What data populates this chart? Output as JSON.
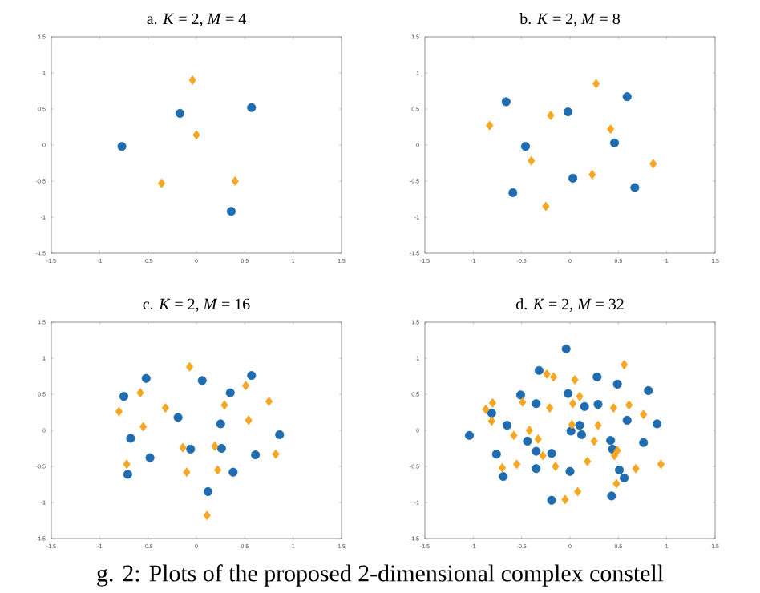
{
  "chart_data": [
    {
      "type": "scatter",
      "title": "a. *K* = 2, *M* = 4",
      "xlim": [
        -1.5,
        1.5
      ],
      "ylim": [
        -1.5,
        1.5
      ],
      "xticks": [
        -1.5,
        -1,
        -0.5,
        0,
        0.5,
        1,
        1.5
      ],
      "yticks": [
        -1.5,
        -1,
        -0.5,
        0,
        0.5,
        1,
        1.5
      ],
      "series": [
        {
          "color": "#1f6db0",
          "marker": "circle",
          "x": [
            -0.77,
            -0.17,
            0.57,
            0.36
          ],
          "values": [
            -0.02,
            0.44,
            0.52,
            -0.92
          ]
        },
        {
          "color": "#f5a623",
          "marker": "diamond",
          "x": [
            -0.04,
            0.0,
            -0.36,
            0.4
          ],
          "values": [
            0.9,
            0.14,
            -0.53,
            -0.5
          ]
        }
      ]
    },
    {
      "type": "scatter",
      "title": "b. *K* = 2, *M* = 8",
      "xlim": [
        -1.5,
        1.5
      ],
      "ylim": [
        -1.5,
        1.5
      ],
      "xticks": [
        -1.5,
        -1,
        -0.5,
        0,
        0.5,
        1,
        1.5
      ],
      "yticks": [
        -1.5,
        -1,
        -0.5,
        0,
        0.5,
        1,
        1.5
      ],
      "series": [
        {
          "color": "#1f6db0",
          "marker": "circle",
          "x": [
            -0.66,
            -0.02,
            0.59,
            -0.46,
            0.46,
            0.03,
            -0.59,
            0.67
          ],
          "values": [
            0.6,
            0.46,
            0.67,
            -0.02,
            0.03,
            -0.46,
            -0.66,
            -0.59
          ]
        },
        {
          "color": "#f5a623",
          "marker": "diamond",
          "x": [
            0.27,
            -0.2,
            -0.83,
            0.42,
            -0.4,
            0.23,
            0.86,
            -0.25
          ],
          "values": [
            0.85,
            0.41,
            0.27,
            0.22,
            -0.22,
            -0.41,
            -0.26,
            -0.85
          ]
        }
      ]
    },
    {
      "type": "scatter",
      "title": "c. *K* = 2, *M* = 16",
      "xlim": [
        -1.5,
        1.5
      ],
      "ylim": [
        -1.5,
        1.5
      ],
      "xticks": [
        -1.5,
        -1,
        -0.5,
        0,
        0.5,
        1,
        1.5
      ],
      "yticks": [
        -1.5,
        -1,
        -0.5,
        0,
        0.5,
        1,
        1.5
      ],
      "annotations": [
        "g. 2: Plots of the proposed 2-dimensional complex constell"
      ],
      "series": [
        {
          "color": "#1f6db0",
          "marker": "circle",
          "x": [
            -0.52,
            -0.75,
            0.06,
            0.57,
            0.35,
            -0.19,
            0.25,
            -0.68,
            0.86,
            -0.06,
            0.26,
            -0.48,
            0.61,
            -0.71,
            0.38,
            0.12
          ],
          "values": [
            0.72,
            0.47,
            0.69,
            0.76,
            0.52,
            0.18,
            0.09,
            -0.11,
            -0.06,
            -0.26,
            -0.25,
            -0.38,
            -0.34,
            -0.61,
            -0.58,
            -0.85
          ]
        },
        {
          "color": "#f5a623",
          "marker": "diamond",
          "x": [
            -0.07,
            0.51,
            -0.58,
            -0.8,
            -0.32,
            0.29,
            0.75,
            0.54,
            -0.55,
            -0.14,
            0.19,
            -0.72,
            -0.1,
            0.22,
            0.82,
            0.11
          ],
          "values": [
            0.88,
            0.62,
            0.52,
            0.26,
            0.31,
            0.35,
            0.4,
            0.14,
            0.05,
            -0.24,
            -0.22,
            -0.47,
            -0.58,
            -0.55,
            -0.33,
            -1.18
          ]
        }
      ]
    },
    {
      "type": "scatter",
      "title": "d. *K* = 2, *M* = 32",
      "xlim": [
        -1.5,
        1.5
      ],
      "ylim": [
        -1.5,
        1.5
      ],
      "xticks": [
        -1.5,
        -1,
        -0.5,
        0,
        0.5,
        1,
        1.5
      ],
      "yticks": [
        -1.5,
        -1,
        -0.5,
        0,
        0.5,
        1,
        1.5
      ],
      "series": [
        {
          "color": "#1f6db0",
          "marker": "circle",
          "x": [
            -0.04,
            -0.32,
            0.28,
            0.49,
            0.81,
            -0.51,
            -0.02,
            -0.35,
            0.15,
            0.29,
            -0.81,
            -0.65,
            0.59,
            0.9,
            0.1,
            0.01,
            0.12,
            -1.04,
            -0.44,
            0.42,
            0.76,
            -0.35,
            -0.19,
            0.44,
            -0.76,
            -0.35,
            0.0,
            0.51,
            -0.69,
            0.56,
            0.43,
            -0.19
          ],
          "values": [
            1.13,
            0.83,
            0.74,
            0.64,
            0.55,
            0.49,
            0.51,
            0.37,
            0.33,
            0.36,
            0.24,
            0.07,
            0.14,
            0.09,
            0.07,
            -0.01,
            -0.06,
            -0.07,
            -0.15,
            -0.14,
            -0.17,
            -0.29,
            -0.32,
            -0.26,
            -0.33,
            -0.53,
            -0.57,
            -0.55,
            -0.64,
            -0.66,
            -0.91,
            -0.97
          ]
        },
        {
          "color": "#f5a623",
          "marker": "diamond",
          "x": [
            0.56,
            -0.17,
            0.05,
            -0.8,
            -0.49,
            0.1,
            0.03,
            -0.21,
            0.45,
            0.61,
            -0.87,
            -0.81,
            0.76,
            0.29,
            -0.58,
            -0.33,
            0.25,
            -0.28,
            -0.15,
            0.18,
            0.46,
            0.68,
            0.94,
            -0.55,
            -0.7,
            0.48,
            0.08,
            -0.05,
            0.02,
            -0.24,
            -0.42,
            0.49
          ],
          "values": [
            0.91,
            0.74,
            0.7,
            0.38,
            0.39,
            0.47,
            0.37,
            0.31,
            0.31,
            0.35,
            0.29,
            0.13,
            0.22,
            0.07,
            -0.07,
            -0.12,
            -0.15,
            -0.35,
            -0.5,
            -0.43,
            -0.35,
            -0.53,
            -0.47,
            -0.47,
            -0.52,
            -0.74,
            -0.85,
            -0.96,
            0.08,
            0.78,
            0.0,
            -0.28
          ]
        }
      ]
    }
  ]
}
